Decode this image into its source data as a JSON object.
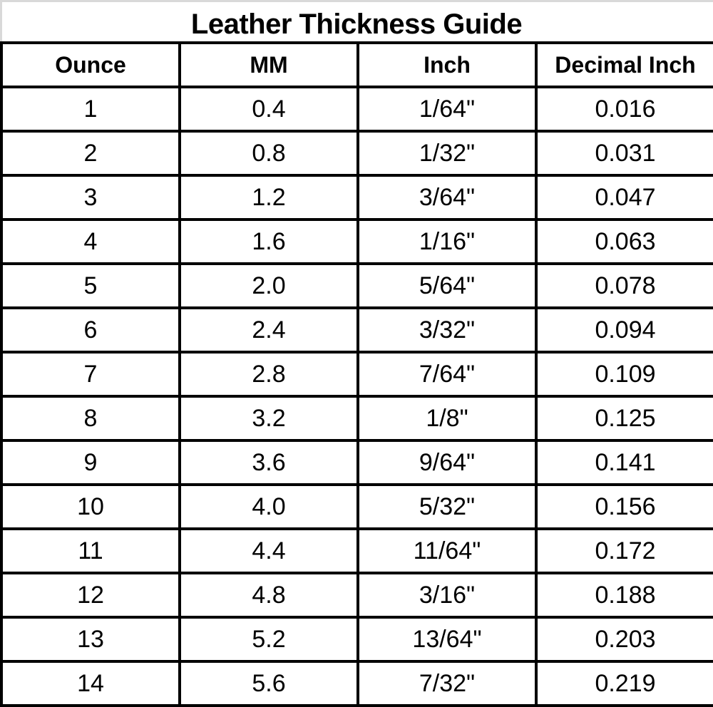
{
  "title": "Leather Thickness Guide",
  "headers": [
    "Ounce",
    "MM",
    "Inch",
    "Decimal Inch"
  ],
  "rows": [
    [
      "1",
      "0.4",
      "1/64\"",
      "0.016"
    ],
    [
      "2",
      "0.8",
      "1/32\"",
      "0.031"
    ],
    [
      "3",
      "1.2",
      "3/64\"",
      "0.047"
    ],
    [
      "4",
      "1.6",
      "1/16\"",
      "0.063"
    ],
    [
      "5",
      "2.0",
      "5/64\"",
      "0.078"
    ],
    [
      "6",
      "2.4",
      "3/32\"",
      "0.094"
    ],
    [
      "7",
      "2.8",
      "7/64\"",
      "0.109"
    ],
    [
      "8",
      "3.2",
      "1/8\"",
      "0.125"
    ],
    [
      "9",
      "3.6",
      "9/64\"",
      "0.141"
    ],
    [
      "10",
      "4.0",
      "5/32\"",
      "0.156"
    ],
    [
      "11",
      "4.4",
      "11/64\"",
      "0.172"
    ],
    [
      "12",
      "4.8",
      "3/16\"",
      "0.188"
    ],
    [
      "13",
      "5.2",
      "13/64\"",
      "0.203"
    ],
    [
      "14",
      "5.6",
      "7/32\"",
      "0.219"
    ]
  ]
}
